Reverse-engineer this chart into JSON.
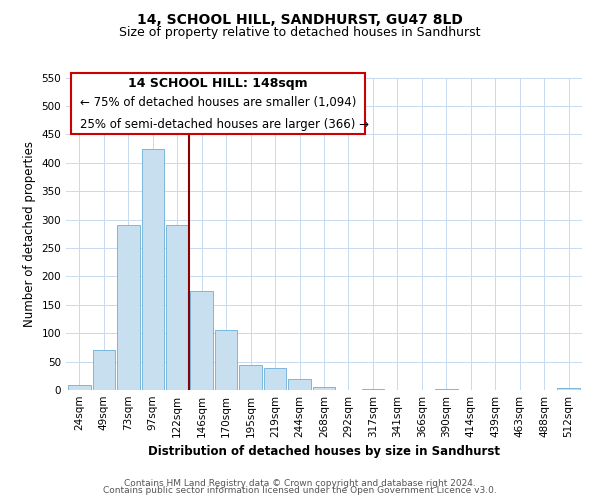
{
  "title": "14, SCHOOL HILL, SANDHURST, GU47 8LD",
  "subtitle": "Size of property relative to detached houses in Sandhurst",
  "xlabel": "Distribution of detached houses by size in Sandhurst",
  "ylabel": "Number of detached properties",
  "bar_labels": [
    "24sqm",
    "49sqm",
    "73sqm",
    "97sqm",
    "122sqm",
    "146sqm",
    "170sqm",
    "195sqm",
    "219sqm",
    "244sqm",
    "268sqm",
    "292sqm",
    "317sqm",
    "341sqm",
    "366sqm",
    "390sqm",
    "414sqm",
    "439sqm",
    "463sqm",
    "488sqm",
    "512sqm"
  ],
  "bar_values": [
    8,
    70,
    291,
    425,
    291,
    175,
    106,
    44,
    38,
    20,
    5,
    0,
    2,
    0,
    0,
    2,
    0,
    0,
    0,
    0,
    3
  ],
  "bar_color": "#c8dff0",
  "bar_edge_color": "#6aafd6",
  "vline_color": "#8b0000",
  "vline_x_index": 4.5,
  "annotation_line1": "14 SCHOOL HILL: 148sqm",
  "annotation_line2": "← 75% of detached houses are smaller (1,094)",
  "annotation_line3": "25% of semi-detached houses are larger (366) →",
  "box_edge_color": "#cc0000",
  "ylim_max": 550,
  "yticks": [
    0,
    50,
    100,
    150,
    200,
    250,
    300,
    350,
    400,
    450,
    500,
    550
  ],
  "footer_line1": "Contains HM Land Registry data © Crown copyright and database right 2024.",
  "footer_line2": "Contains public sector information licensed under the Open Government Licence v3.0.",
  "bg_color": "#ffffff",
  "grid_color": "#c8daf0",
  "title_fontsize": 10,
  "subtitle_fontsize": 9,
  "axis_label_fontsize": 8.5,
  "tick_fontsize": 7.5,
  "annotation_title_fontsize": 9,
  "annotation_text_fontsize": 8.5,
  "footer_fontsize": 6.5
}
